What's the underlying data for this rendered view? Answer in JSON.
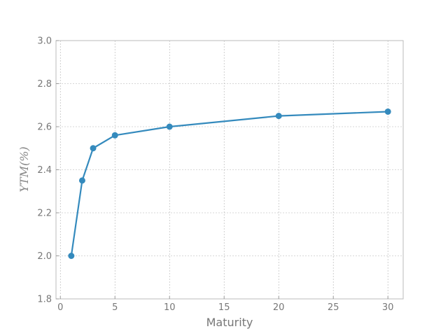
{
  "chart_data": {
    "type": "line",
    "title": "",
    "xlabel": "Maturity",
    "ylabel": "YTM(%)",
    "xlim": [
      -0.4,
      31.4
    ],
    "ylim": [
      1.8,
      3.0
    ],
    "xticks": [
      "0",
      "5",
      "10",
      "15",
      "20",
      "25",
      "30"
    ],
    "yticks": [
      "1.8",
      "2.0",
      "2.2",
      "2.4",
      "2.6",
      "2.8",
      "3.0"
    ],
    "grid": true,
    "legend": "none",
    "series": [
      {
        "x": [
          1,
          2,
          3,
          5,
          10,
          20,
          30
        ],
        "y": [
          2.0,
          2.35,
          2.5,
          2.56,
          2.6,
          2.65,
          2.67
        ],
        "color": "#348abd",
        "marker": "circle"
      }
    ]
  }
}
